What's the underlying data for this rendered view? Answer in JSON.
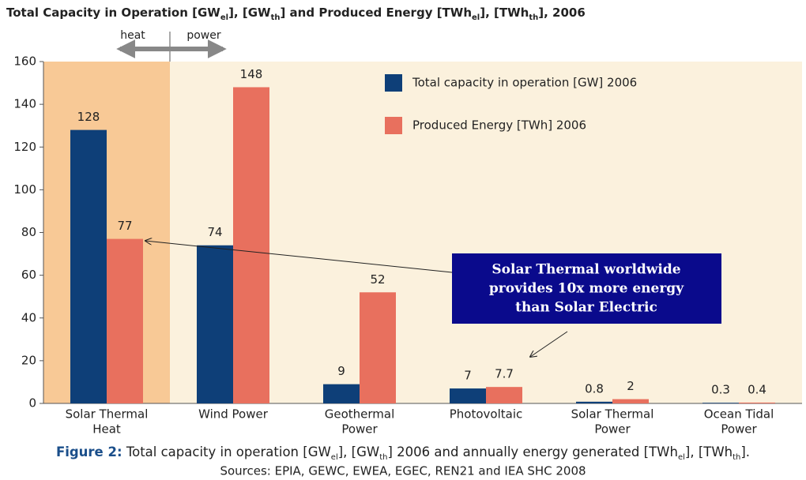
{
  "chart_data": {
    "type": "bar",
    "title": [
      "Total Capacity in Operation [GW",
      "el",
      "], [GW",
      "th",
      "] and Produced Energy [TWh",
      "el",
      "], [TWh",
      "th",
      "], 2006"
    ],
    "categories": [
      [
        "Solar Thermal",
        "Heat"
      ],
      [
        "Wind Power"
      ],
      [
        "Geothermal",
        "Power"
      ],
      [
        "Photovoltaic"
      ],
      [
        "Solar Thermal",
        "Power"
      ],
      [
        "Ocean Tidal",
        "Power"
      ]
    ],
    "series": [
      {
        "name": "Total capacity in operation [GW] 2006",
        "color": "#0e3f78",
        "values": [
          128,
          74,
          9,
          7,
          0.8,
          0.3
        ]
      },
      {
        "name": "Produced Energy [TWh] 2006",
        "color": "#e8705e",
        "values": [
          77,
          148,
          52,
          7.7,
          2,
          0.4
        ]
      }
    ],
    "ylim": [
      0,
      160
    ],
    "yticks": [
      0,
      20,
      40,
      60,
      80,
      100,
      120,
      140,
      160
    ],
    "grid": false,
    "legend": "top-right",
    "annotations": {
      "heat": "heat",
      "power": "power",
      "callout": [
        "Solar Thermal worldwide",
        "provides 10x more energy",
        "than Solar Electric"
      ]
    },
    "caption": {
      "label": "Figure 2:",
      "text": [
        " Total capacity in operation [GW",
        "el",
        "], [GW",
        "th",
        "] 2006 and annually energy generated [TWh",
        "el",
        "], [TWh",
        "th",
        "]."
      ],
      "sources": "Sources: EPIA, GEWC, EWEA, EGEC,  REN21 and IEA SHC 2008"
    }
  }
}
